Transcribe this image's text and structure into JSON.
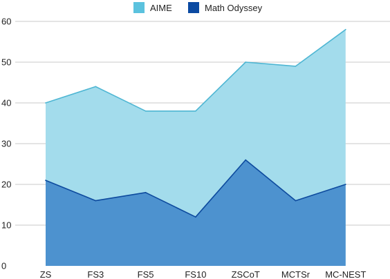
{
  "chart_data": {
    "type": "area",
    "categories": [
      "ZS",
      "FS3",
      "FS5",
      "FS10",
      "ZSCoT",
      "MCTSr",
      "MC-NEST"
    ],
    "series": [
      {
        "name": "AIME",
        "values": [
          40,
          44,
          38,
          38,
          50,
          49,
          58
        ],
        "color": "#a3dcec",
        "line_color": "#4eb6d3",
        "legend_color": "#5bc2de"
      },
      {
        "name": "Math Odyssey",
        "values": [
          21,
          16,
          18,
          12,
          26,
          16,
          20
        ],
        "color": "#4d92cf",
        "line_color": "#0d4a9e",
        "legend_color": "#0b4aa2"
      }
    ],
    "title": "",
    "xlabel": "",
    "ylabel": "",
    "ylim": [
      0,
      60
    ],
    "yticks": [
      "0",
      "10",
      "20",
      "30",
      "40",
      "50",
      "60"
    ],
    "grid": true,
    "legend_position": "top-center"
  }
}
